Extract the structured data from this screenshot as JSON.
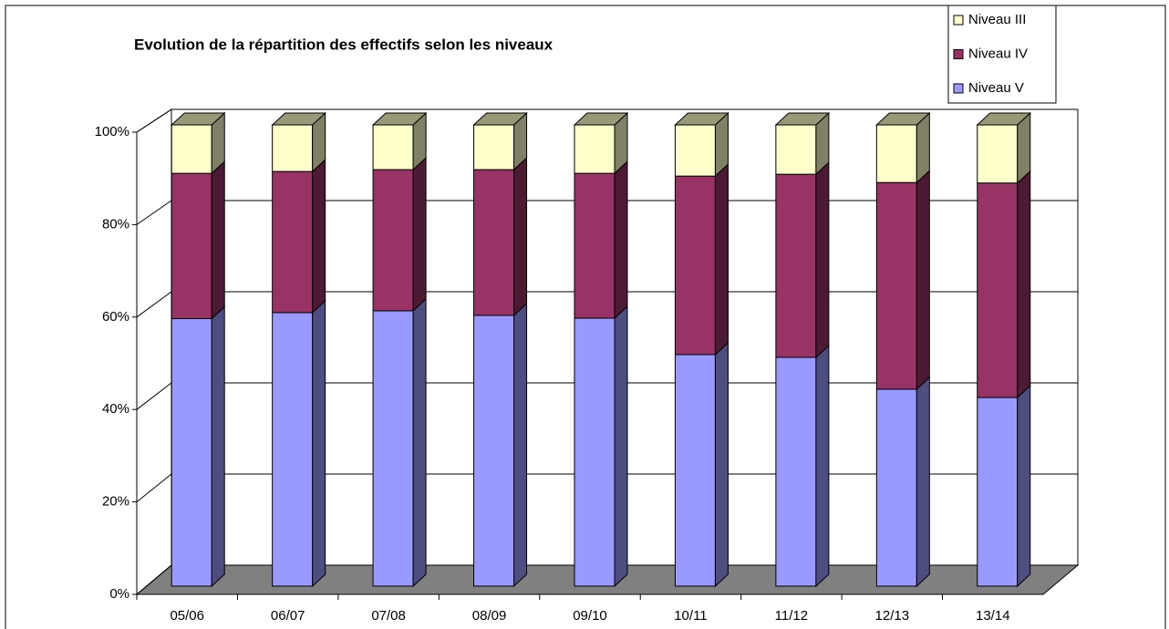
{
  "chart_data": {
    "type": "bar3d_stacked",
    "title": "Evolution de la répartition des effectifs selon les niveaux",
    "categories": [
      "05/06",
      "06/07",
      "07/08",
      "08/09",
      "09/10",
      "10/11",
      "11/12",
      "12/13",
      "13/14"
    ],
    "series": [
      {
        "name": "Niveau III",
        "color": "#ffffcc",
        "values": [
          10.5,
          10.1,
          9.7,
          9.7,
          10.5,
          11.1,
          10.7,
          12.5,
          12.6
        ]
      },
      {
        "name": "Niveau IV",
        "color": "#993366",
        "values": [
          31.5,
          30.6,
          30.6,
          31.6,
          31.4,
          38.7,
          39.7,
          44.8,
          46.5
        ]
      },
      {
        "name": "Niveau V",
        "color": "#9999ff",
        "values": [
          58.0,
          59.3,
          59.7,
          58.7,
          58.1,
          50.2,
          49.6,
          42.7,
          40.9
        ]
      }
    ],
    "ylim": [
      0,
      100
    ],
    "yticks": [
      {
        "value": 0,
        "label": "0%"
      },
      {
        "value": 20,
        "label": "20%"
      },
      {
        "value": 40,
        "label": "40%"
      },
      {
        "value": 60,
        "label": "60%"
      },
      {
        "value": 80,
        "label": "80%"
      },
      {
        "value": 100,
        "label": "100%"
      }
    ],
    "grid": true,
    "legend": "top-right"
  }
}
